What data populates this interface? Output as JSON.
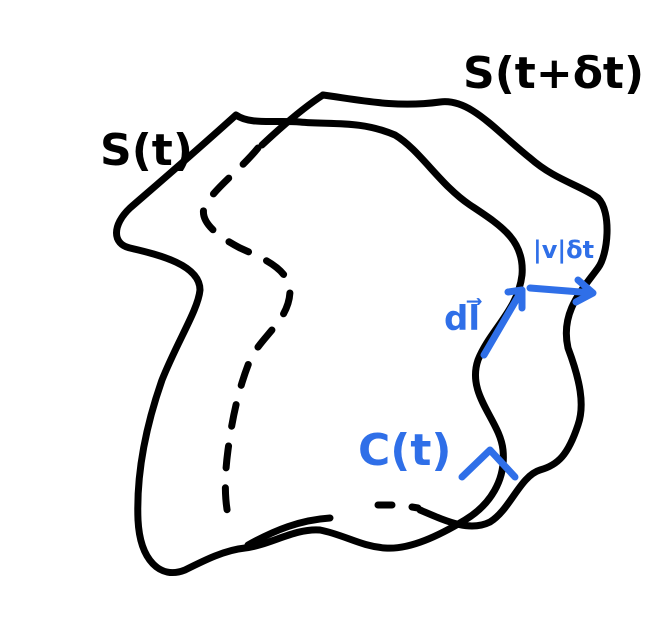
{
  "diagram": {
    "labels": {
      "surface_t": "S(t)",
      "surface_t_dt": "S(t+δt)",
      "curve": "C(t)",
      "line_element": "dl⃗",
      "displacement": "|v|δt"
    },
    "colors": {
      "ink": "#000000",
      "annotation": "#2f6fe8"
    }
  }
}
